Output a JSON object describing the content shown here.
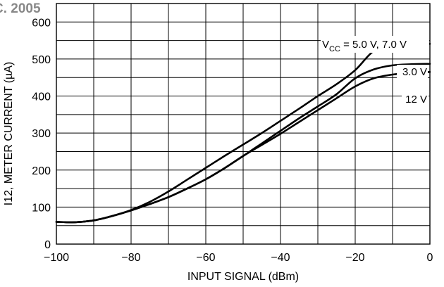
{
  "header_fragment": "C. 2005",
  "chart_data": {
    "type": "line",
    "title": "",
    "xlabel": "INPUT SIGNAL (dBm)",
    "ylabel": "I12, METER CURRENT (µA)",
    "xlim": [
      -100,
      0
    ],
    "ylim": [
      0,
      650
    ],
    "x_major_ticks": [
      -100,
      -80,
      -60,
      -40,
      -20,
      0
    ],
    "x_tick_labels": [
      "−100",
      "−80",
      "−60",
      "−40",
      "−20",
      "0"
    ],
    "x_grid_step": 10,
    "y_major_ticks": [
      0,
      100,
      200,
      300,
      400,
      500,
      600
    ],
    "y_tick_labels": [
      "0",
      "100",
      "200",
      "300",
      "400",
      "500",
      "600"
    ],
    "y_grid_step": 50,
    "grid": true,
    "series": [
      {
        "name": "VCC = 5.0 V, 7.0 V",
        "label_parts": {
          "v": "V",
          "sub": "CC",
          "rest": " = 5.0 V, 7.0 V"
        },
        "x": [
          -100,
          -95,
          -90,
          -85,
          -80,
          -75,
          -70,
          -65,
          -60,
          -55,
          -50,
          -45,
          -40,
          -35,
          -30,
          -25,
          -20,
          -15,
          -10,
          -5,
          0
        ],
        "y": [
          60,
          59,
          64,
          76,
          92,
          114,
          142,
          174,
          206,
          238,
          269,
          300,
          333,
          366,
          400,
          432,
          470,
          522,
          537,
          540,
          541
        ]
      },
      {
        "name": "3.0 V",
        "x": [
          -100,
          -95,
          -90,
          -85,
          -80,
          -75,
          -70,
          -65,
          -60,
          -55,
          -50,
          -45,
          -40,
          -35,
          -30,
          -25,
          -20,
          -15,
          -10,
          -5,
          0
        ],
        "y": [
          60,
          59,
          64,
          76,
          91,
          108,
          127,
          150,
          175,
          205,
          238,
          272,
          306,
          340,
          372,
          405,
          448,
          472,
          483,
          486,
          487
        ]
      },
      {
        "name": "12 V",
        "x": [
          -100,
          -95,
          -90,
          -85,
          -80,
          -75,
          -70,
          -65,
          -60,
          -55,
          -50,
          -45,
          -40,
          -35,
          -30,
          -25,
          -20,
          -15,
          -10,
          -5,
          0
        ],
        "y": [
          60,
          59,
          64,
          76,
          91,
          108,
          127,
          150,
          175,
          205,
          238,
          268,
          298,
          330,
          362,
          394,
          426,
          448,
          458,
          462,
          465
        ]
      }
    ]
  }
}
